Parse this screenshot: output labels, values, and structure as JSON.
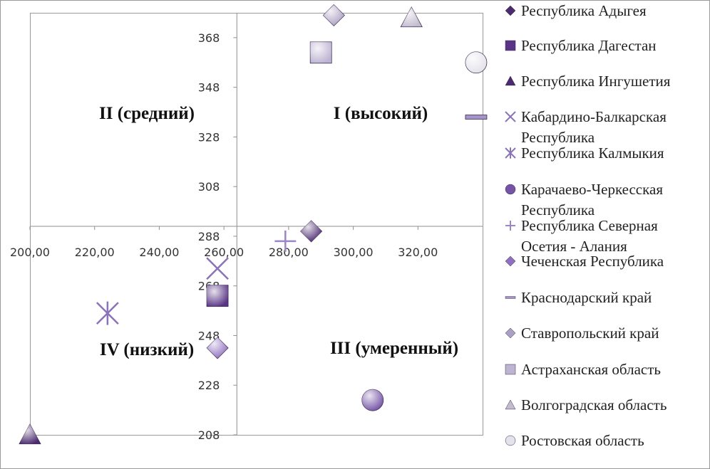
{
  "chart_data": {
    "type": "scatter",
    "title": "",
    "xlabel": "",
    "ylabel": "",
    "xlim": [
      200,
      340
    ],
    "ylim": [
      208,
      378
    ],
    "x_ticks": [
      "200,00",
      "220,00",
      "240,00",
      "260,00",
      "280,00",
      "300,00",
      "320,00"
    ],
    "y_ticks": [
      "208",
      "228",
      "248",
      "268",
      "288",
      "308",
      "328",
      "348",
      "368"
    ],
    "crossing": {
      "x": 264,
      "y": 292
    },
    "grid": false,
    "legend_position": "right",
    "quadrant_labels": [
      {
        "text": "II (средний)",
        "quadrant": "top-left"
      },
      {
        "text": "I (высокий)",
        "quadrant": "top-right"
      },
      {
        "text": "IV (низкий)",
        "quadrant": "bottom-left"
      },
      {
        "text": "III (умеренный)",
        "quadrant": "bottom-right"
      }
    ],
    "series": [
      {
        "name": "Республика Адыгея",
        "marker": "diamond-icon",
        "color": "#4b2a6e",
        "x": 287,
        "y": 290
      },
      {
        "name": "Республика Дагестан",
        "marker": "square-icon",
        "color": "#5a3585",
        "x": 258,
        "y": 264
      },
      {
        "name": "Республика Ингушетия",
        "marker": "triangle-icon",
        "color": "#4b2a6e",
        "x": 200,
        "y": 208
      },
      {
        "name": "Кабардино-Балкарская Республика",
        "marker": "x-icon",
        "color": "#8a73b8",
        "x": 258,
        "y": 275
      },
      {
        "name": "Республика Калмыкия",
        "marker": "star-icon",
        "color": "#8a73b8",
        "x": 224,
        "y": 257
      },
      {
        "name": "Карачаево-Черкесская Республика",
        "marker": "circle-icon",
        "color": "#7553a6",
        "x": 306,
        "y": 222
      },
      {
        "name": "Республика Северная Осетия - Алания",
        "marker": "plus-icon",
        "color": "#9b87c6",
        "x": 279,
        "y": 286
      },
      {
        "name": "Чеченская Республика",
        "marker": "diamond-icon",
        "color": "#8f6fc0",
        "x": 258,
        "y": 243
      },
      {
        "name": "Краснодарский край",
        "marker": "dash-icon",
        "color": "#a594c8",
        "x": 338,
        "y": 336
      },
      {
        "name": "Ставропольский край",
        "marker": "diamond-icon",
        "color": "#aaa0c2",
        "x": 294,
        "y": 377
      },
      {
        "name": "Астраханская область",
        "marker": "square-icon",
        "color": "#bdb4d2",
        "x": 290,
        "y": 362
      },
      {
        "name": "Волгоградская область",
        "marker": "triangle-icon",
        "color": "#c2bccd",
        "x": 318,
        "y": 376
      },
      {
        "name": "Ростовская область",
        "marker": "circle-icon",
        "color": "#e4e2ea",
        "x": 338,
        "y": 358
      }
    ]
  }
}
